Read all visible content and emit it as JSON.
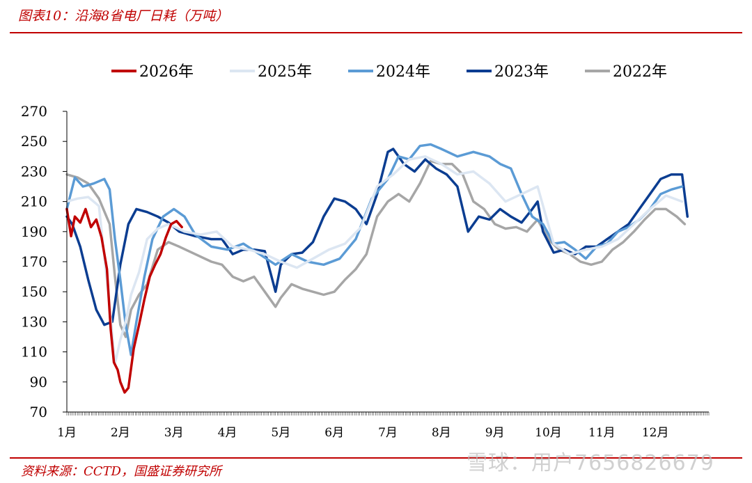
{
  "figure": {
    "title": "图表10：沿海8省电厂日耗（万吨）",
    "source": "资料来源：CCTD，国盛证券研究所",
    "watermark": "雪球：用户7656826679"
  },
  "colors": {
    "accent": "#c00000",
    "s2026": "#c00000",
    "s2025": "#dce6f2",
    "s2024": "#5b9bd5",
    "s2023": "#0b3d91",
    "s2022": "#a6a6a6"
  },
  "chart_data": {
    "type": "line",
    "title": "",
    "xlabel": "",
    "ylabel": "",
    "ylim": [
      70,
      270
    ],
    "yticks": [
      70,
      90,
      110,
      130,
      150,
      170,
      190,
      210,
      230,
      250,
      270
    ],
    "xlim": [
      1,
      13
    ],
    "month_labels": [
      "1月",
      "2月",
      "3月",
      "4月",
      "5月",
      "6月",
      "7月",
      "8月",
      "9月",
      "10月",
      "11月",
      "12月"
    ],
    "legend_position": "top",
    "grid": false,
    "series": [
      {
        "name": "2026年",
        "color": "#c00000",
        "points": [
          [
            1.0,
            205
          ],
          [
            1.08,
            187
          ],
          [
            1.15,
            200
          ],
          [
            1.25,
            196
          ],
          [
            1.35,
            205
          ],
          [
            1.45,
            193
          ],
          [
            1.55,
            198
          ],
          [
            1.65,
            186
          ],
          [
            1.75,
            165
          ],
          [
            1.82,
            125
          ],
          [
            1.88,
            103
          ],
          [
            1.95,
            98
          ],
          [
            2.0,
            90
          ],
          [
            2.08,
            83
          ],
          [
            2.15,
            86
          ],
          [
            2.25,
            112
          ],
          [
            2.35,
            128
          ],
          [
            2.45,
            145
          ],
          [
            2.55,
            160
          ],
          [
            2.65,
            168
          ],
          [
            2.75,
            175
          ],
          [
            2.85,
            186
          ],
          [
            2.95,
            195
          ],
          [
            3.05,
            197
          ],
          [
            3.15,
            193
          ]
        ]
      },
      {
        "name": "2025年",
        "color": "#dce6f2",
        "points": [
          [
            1.0,
            210
          ],
          [
            1.2,
            212
          ],
          [
            1.4,
            213
          ],
          [
            1.6,
            207
          ],
          [
            1.8,
            140
          ],
          [
            1.9,
            102
          ],
          [
            2.0,
            118
          ],
          [
            2.1,
            130
          ],
          [
            2.2,
            148
          ],
          [
            2.35,
            163
          ],
          [
            2.5,
            185
          ],
          [
            2.7,
            192
          ],
          [
            2.9,
            195
          ],
          [
            3.2,
            190
          ],
          [
            3.5,
            188
          ],
          [
            3.8,
            190
          ],
          [
            4.1,
            180
          ],
          [
            4.4,
            178
          ],
          [
            4.7,
            175
          ],
          [
            5.0,
            170
          ],
          [
            5.3,
            166
          ],
          [
            5.6,
            172
          ],
          [
            5.9,
            178
          ],
          [
            6.2,
            182
          ],
          [
            6.5,
            193
          ],
          [
            6.8,
            220
          ],
          [
            7.1,
            228
          ],
          [
            7.4,
            238
          ],
          [
            7.7,
            240
          ],
          [
            8.0,
            235
          ],
          [
            8.3,
            228
          ],
          [
            8.6,
            230
          ],
          [
            8.9,
            222
          ],
          [
            9.2,
            210
          ],
          [
            9.5,
            215
          ],
          [
            9.8,
            220
          ],
          [
            10.1,
            182
          ],
          [
            10.4,
            175
          ],
          [
            10.7,
            178
          ],
          [
            11.0,
            180
          ],
          [
            11.3,
            185
          ],
          [
            11.6,
            195
          ],
          [
            11.9,
            205
          ],
          [
            12.2,
            214
          ],
          [
            12.5,
            210
          ]
        ]
      },
      {
        "name": "2024年",
        "color": "#5b9bd5",
        "points": [
          [
            1.0,
            205
          ],
          [
            1.15,
            226
          ],
          [
            1.3,
            220
          ],
          [
            1.5,
            222
          ],
          [
            1.7,
            225
          ],
          [
            1.8,
            218
          ],
          [
            1.9,
            185
          ],
          [
            2.0,
            158
          ],
          [
            2.1,
            128
          ],
          [
            2.2,
            108
          ],
          [
            2.3,
            130
          ],
          [
            2.45,
            160
          ],
          [
            2.6,
            185
          ],
          [
            2.8,
            200
          ],
          [
            3.0,
            205
          ],
          [
            3.2,
            200
          ],
          [
            3.4,
            188
          ],
          [
            3.7,
            180
          ],
          [
            4.0,
            178
          ],
          [
            4.3,
            182
          ],
          [
            4.6,
            175
          ],
          [
            4.9,
            168
          ],
          [
            5.2,
            175
          ],
          [
            5.5,
            170
          ],
          [
            5.8,
            168
          ],
          [
            6.1,
            172
          ],
          [
            6.4,
            185
          ],
          [
            6.7,
            212
          ],
          [
            7.0,
            225
          ],
          [
            7.2,
            240
          ],
          [
            7.4,
            238
          ],
          [
            7.6,
            247
          ],
          [
            7.8,
            248
          ],
          [
            8.0,
            245
          ],
          [
            8.3,
            240
          ],
          [
            8.6,
            243
          ],
          [
            8.9,
            240
          ],
          [
            9.1,
            235
          ],
          [
            9.3,
            232
          ],
          [
            9.5,
            215
          ],
          [
            9.7,
            200
          ],
          [
            9.9,
            195
          ],
          [
            10.1,
            182
          ],
          [
            10.3,
            183
          ],
          [
            10.5,
            178
          ],
          [
            10.7,
            172
          ],
          [
            10.9,
            180
          ],
          [
            11.1,
            182
          ],
          [
            11.3,
            190
          ],
          [
            11.5,
            193
          ],
          [
            11.7,
            198
          ],
          [
            11.9,
            205
          ],
          [
            12.1,
            215
          ],
          [
            12.3,
            218
          ],
          [
            12.5,
            220
          ]
        ]
      },
      {
        "name": "2023年",
        "color": "#0b3d91",
        "points": [
          [
            1.0,
            200
          ],
          [
            1.1,
            195
          ],
          [
            1.25,
            180
          ],
          [
            1.4,
            158
          ],
          [
            1.55,
            138
          ],
          [
            1.7,
            128
          ],
          [
            1.85,
            130
          ],
          [
            2.0,
            168
          ],
          [
            2.15,
            195
          ],
          [
            2.3,
            205
          ],
          [
            2.5,
            203
          ],
          [
            2.7,
            200
          ],
          [
            2.9,
            196
          ],
          [
            3.1,
            190
          ],
          [
            3.4,
            187
          ],
          [
            3.7,
            185
          ],
          [
            3.9,
            185
          ],
          [
            4.1,
            175
          ],
          [
            4.3,
            178
          ],
          [
            4.5,
            178
          ],
          [
            4.7,
            177
          ],
          [
            4.9,
            150
          ],
          [
            5.0,
            168
          ],
          [
            5.2,
            175
          ],
          [
            5.4,
            176
          ],
          [
            5.6,
            183
          ],
          [
            5.8,
            200
          ],
          [
            6.0,
            212
          ],
          [
            6.2,
            210
          ],
          [
            6.4,
            205
          ],
          [
            6.6,
            195
          ],
          [
            6.8,
            215
          ],
          [
            7.0,
            243
          ],
          [
            7.1,
            245
          ],
          [
            7.3,
            235
          ],
          [
            7.5,
            230
          ],
          [
            7.7,
            238
          ],
          [
            7.9,
            232
          ],
          [
            8.1,
            228
          ],
          [
            8.3,
            220
          ],
          [
            8.5,
            190
          ],
          [
            8.7,
            200
          ],
          [
            8.9,
            198
          ],
          [
            9.1,
            205
          ],
          [
            9.3,
            200
          ],
          [
            9.5,
            196
          ],
          [
            9.7,
            205
          ],
          [
            9.8,
            210
          ],
          [
            9.9,
            190
          ],
          [
            10.1,
            176
          ],
          [
            10.3,
            178
          ],
          [
            10.5,
            175
          ],
          [
            10.7,
            180
          ],
          [
            10.9,
            180
          ],
          [
            11.1,
            185
          ],
          [
            11.3,
            190
          ],
          [
            11.5,
            195
          ],
          [
            11.7,
            205
          ],
          [
            11.9,
            215
          ],
          [
            12.1,
            225
          ],
          [
            12.3,
            228
          ],
          [
            12.5,
            228
          ],
          [
            12.6,
            200
          ]
        ]
      },
      {
        "name": "2022年",
        "color": "#a6a6a6",
        "points": [
          [
            1.0,
            228
          ],
          [
            1.2,
            226
          ],
          [
            1.4,
            222
          ],
          [
            1.6,
            212
          ],
          [
            1.8,
            195
          ],
          [
            1.9,
            160
          ],
          [
            2.0,
            128
          ],
          [
            2.1,
            120
          ],
          [
            2.2,
            138
          ],
          [
            2.35,
            148
          ],
          [
            2.5,
            155
          ],
          [
            2.7,
            178
          ],
          [
            2.9,
            183
          ],
          [
            3.1,
            180
          ],
          [
            3.4,
            175
          ],
          [
            3.7,
            170
          ],
          [
            3.9,
            168
          ],
          [
            4.1,
            160
          ],
          [
            4.3,
            157
          ],
          [
            4.5,
            160
          ],
          [
            4.7,
            150
          ],
          [
            4.9,
            140
          ],
          [
            5.0,
            146
          ],
          [
            5.2,
            155
          ],
          [
            5.4,
            152
          ],
          [
            5.6,
            150
          ],
          [
            5.8,
            148
          ],
          [
            6.0,
            150
          ],
          [
            6.2,
            158
          ],
          [
            6.4,
            165
          ],
          [
            6.6,
            175
          ],
          [
            6.8,
            200
          ],
          [
            7.0,
            210
          ],
          [
            7.2,
            215
          ],
          [
            7.4,
            210
          ],
          [
            7.6,
            222
          ],
          [
            7.8,
            237
          ],
          [
            8.0,
            235
          ],
          [
            8.2,
            235
          ],
          [
            8.4,
            228
          ],
          [
            8.6,
            210
          ],
          [
            8.8,
            205
          ],
          [
            9.0,
            195
          ],
          [
            9.2,
            192
          ],
          [
            9.4,
            193
          ],
          [
            9.6,
            190
          ],
          [
            9.8,
            198
          ],
          [
            10.0,
            185
          ],
          [
            10.2,
            178
          ],
          [
            10.4,
            175
          ],
          [
            10.6,
            170
          ],
          [
            10.8,
            168
          ],
          [
            11.0,
            170
          ],
          [
            11.2,
            178
          ],
          [
            11.4,
            183
          ],
          [
            11.6,
            190
          ],
          [
            11.8,
            198
          ],
          [
            12.0,
            205
          ],
          [
            12.2,
            205
          ],
          [
            12.4,
            200
          ],
          [
            12.55,
            195
          ]
        ]
      }
    ]
  }
}
